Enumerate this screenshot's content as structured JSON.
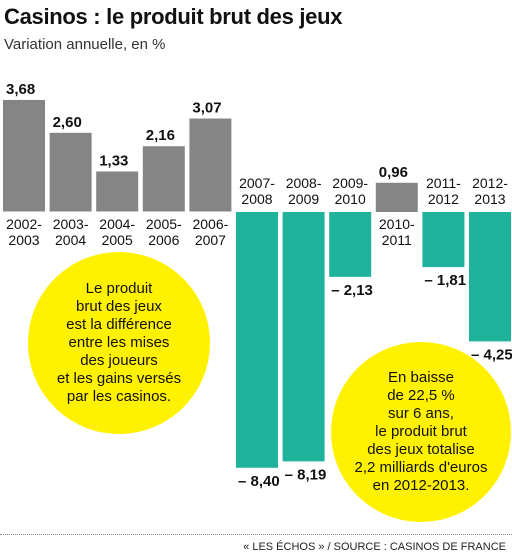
{
  "title": "Casinos : le produit brut des jeux",
  "subtitle": "Variation annuelle, en %",
  "source": "« LES ÉCHOS » / SOURCE : CASINOS DE FRANCE",
  "colors": {
    "positive": "#858585",
    "negative": "#1fb39b",
    "bubble": "#fff200"
  },
  "bubbles": {
    "left": "Le produit\nbrut des jeux\nest la différence\nentre les mises\ndes joueurs\net les gains versés\npar les casinos.",
    "right": "En baisse\nde 22,5 %\nsur 6 ans,\nle produit brut\ndes jeux totalise\n2,2 milliards d'euros\nen 2012-2013."
  },
  "chart_data": {
    "type": "bar",
    "categories": [
      "2002-\n2003",
      "2003-\n2004",
      "2004-\n2005",
      "2005-\n2006",
      "2006-\n2007",
      "2007-\n2008",
      "2008-\n2009",
      "2009-\n2010",
      "2010-\n2011",
      "2011-\n2012",
      "2012-\n2013"
    ],
    "values": [
      3.68,
      2.6,
      1.33,
      2.16,
      3.07,
      -8.4,
      -8.19,
      -2.13,
      0.96,
      -1.81,
      -4.25
    ],
    "value_labels": [
      "3,68",
      "2,60",
      "1,33",
      "2,16",
      "3,07",
      "– 8,40",
      "– 8,19",
      "– 2,13",
      "0,96",
      "– 1,81",
      "– 4,25"
    ],
    "title": "Casinos : le produit brut des jeux",
    "ylabel": "Variation annuelle, en %",
    "grid": false,
    "legend": "none"
  }
}
